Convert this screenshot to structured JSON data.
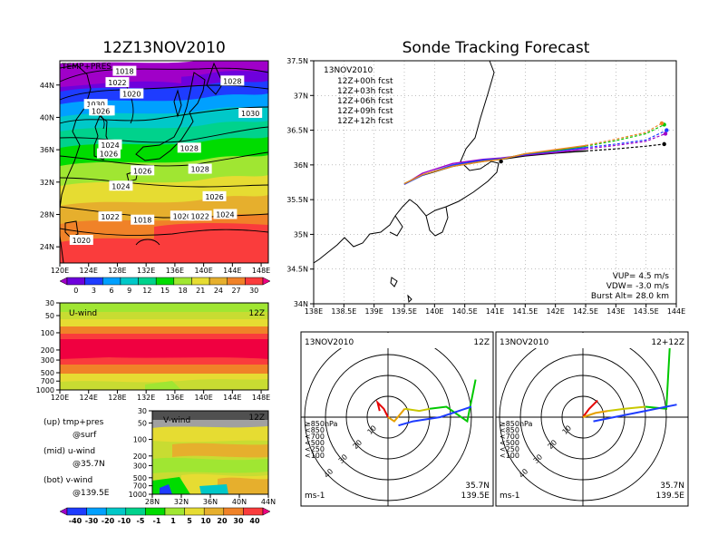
{
  "left_title": "12Z13NOV2010",
  "right_title": "Sonde Tracking Forecast",
  "map_panel": {
    "inset_label": "TEMP+PRES",
    "lon_ticks": [
      "120E",
      "124E",
      "128E",
      "132E",
      "136E",
      "140E",
      "144E",
      "148E"
    ],
    "lat_ticks": [
      "44N",
      "40N",
      "36N",
      "32N",
      "28N",
      "24N"
    ],
    "isobar_labels": [
      {
        "text": "1018",
        "lon": 129,
        "lat": 45.7
      },
      {
        "text": "1022",
        "lon": 128,
        "lat": 44.3
      },
      {
        "text": "1020",
        "lon": 130,
        "lat": 42.9
      },
      {
        "text": "1028",
        "lon": 144,
        "lat": 44.5
      },
      {
        "text": "1030",
        "lon": 125,
        "lat": 41.6
      },
      {
        "text": "1026",
        "lon": 126,
        "lat": 40.8
      },
      {
        "text": "1026",
        "lon": 125.7,
        "lat": 40.8
      },
      {
        "text": "1030",
        "lon": 146.5,
        "lat": 40.5
      },
      {
        "text": "1024",
        "lon": 127,
        "lat": 36.6
      },
      {
        "text": "1026",
        "lon": 126.8,
        "lat": 35.5
      },
      {
        "text": "1028",
        "lon": 138,
        "lat": 36.2
      },
      {
        "text": "1026",
        "lon": 131.5,
        "lat": 33.4
      },
      {
        "text": "1028",
        "lon": 139.5,
        "lat": 33.6
      },
      {
        "text": "1024",
        "lon": 128.5,
        "lat": 31.5
      },
      {
        "text": "1026",
        "lon": 141.5,
        "lat": 30.2
      },
      {
        "text": "1022",
        "lon": 127,
        "lat": 27.7
      },
      {
        "text": "1018",
        "lon": 131.5,
        "lat": 27.3
      },
      {
        "text": "1020",
        "lon": 137,
        "lat": 27.8
      },
      {
        "text": "1022",
        "lon": 139.5,
        "lat": 27.8
      },
      {
        "text": "1024",
        "lon": 143,
        "lat": 28.0
      },
      {
        "text": "1020",
        "lon": 123,
        "lat": 24.8
      }
    ],
    "colorbar_ticks": [
      "0",
      "3",
      "6",
      "9",
      "12",
      "15",
      "18",
      "21",
      "24",
      "27",
      "30"
    ],
    "colorbar_colors": [
      "#a000c8",
      "#6e00dc",
      "#1e3cff",
      "#00a0ff",
      "#00c8c8",
      "#00d28c",
      "#00dc00",
      "#a0e632",
      "#e6dc32",
      "#e6af2d",
      "#f08228",
      "#fa3c3c",
      "#f00082"
    ]
  },
  "uwind_panel": {
    "label": "U-wind",
    "time": "12Z",
    "p_ticks": [
      "30",
      "50",
      "100",
      "200",
      "300",
      "500",
      "700",
      "1000"
    ],
    "lon_ticks": [
      "120E",
      "124E",
      "128E",
      "132E",
      "136E",
      "140E",
      "144E",
      "148E"
    ]
  },
  "vwind_panel": {
    "label": "V-wind",
    "time": "12Z",
    "p_ticks": [
      "30",
      "50",
      "100",
      "200",
      "300",
      "500",
      "700",
      "1000"
    ],
    "lat_ticks": [
      "28N",
      "32N",
      "36N",
      "40N",
      "44N"
    ],
    "colorbar_ticks": [
      "-40",
      "-30",
      "-20",
      "-10",
      "-5",
      "-1",
      "1",
      "5",
      "10",
      "20",
      "30",
      "40"
    ],
    "colorbar_colors": [
      "#a000c8",
      "#1e3cff",
      "#00a0ff",
      "#00c8c8",
      "#00d28c",
      "#00dc00",
      "#a0e632",
      "#e6dc32",
      "#e6af2d",
      "#f08228",
      "#fa3c3c",
      "#f00082"
    ]
  },
  "notes": [
    {
      "line1": "(up) tmp+pres",
      "line2": "@surf"
    },
    {
      "line1": "(mid) u-wind",
      "line2": "@35.7N"
    },
    {
      "line1": "(bot) v-wind",
      "line2": "@139.5E"
    }
  ],
  "track_panel": {
    "date": "13NOV2010",
    "legend": [
      {
        "text": "12Z+00h  fcst",
        "color": "#000000"
      },
      {
        "text": "12Z+03h  fcst",
        "color": "#a000c8"
      },
      {
        "text": "12Z+06h  fcst",
        "color": "#1e3cff"
      },
      {
        "text": "12Z+09h  fcst",
        "color": "#00c800"
      },
      {
        "text": "12Z+12h  fcst",
        "color": "#f08228"
      }
    ],
    "lat_ticks": [
      "37.5N",
      "37N",
      "36.5N",
      "36N",
      "35.5N",
      "35N",
      "34.5N",
      "34N"
    ],
    "lon_ticks": [
      "138E",
      "138.5E",
      "139E",
      "139.5E",
      "140E",
      "140.5E",
      "141E",
      "141.5E",
      "142E",
      "142.5E",
      "143E",
      "143.5E",
      "144E"
    ],
    "info": [
      "VUP=  4.5  m/s",
      "VDW=  -3.0  m/s",
      "Burst Alt=  28.0  km"
    ]
  },
  "hodo_left": {
    "date": "13NOV2010",
    "time": "12Z",
    "ring_labels": [
      "10",
      "20",
      "30",
      "40"
    ],
    "levels": [
      "≥850hPa",
      "<850",
      "<700",
      "<500",
      "<250",
      "<100"
    ],
    "level_colors": [
      "#e60000",
      "#e6a000",
      "#c8c800",
      "#00c800",
      "#00a0ff",
      "#1e3cff"
    ],
    "loc1": "35.7N",
    "loc2": "139.5E",
    "unit": "ms-1"
  },
  "hodo_right": {
    "date": "13NOV2010",
    "time": "12+12Z",
    "ring_labels": [
      "10",
      "20",
      "30",
      "40"
    ],
    "levels": [
      "≥850hPa",
      "<850",
      "<700",
      "<500",
      "<250",
      "<100"
    ],
    "level_colors": [
      "#e60000",
      "#e6a000",
      "#c8c800",
      "#00c800",
      "#00a0ff",
      "#1e3cff"
    ],
    "loc1": "35.7N",
    "loc2": "139.5E",
    "unit": "ms-1"
  },
  "chart_data": [
    {
      "type": "heatmap",
      "title": "12Z13NOV2010",
      "subtitle": "TEMP+PRES",
      "xlabel": "",
      "ylabel": "",
      "xlim": [
        120,
        149
      ],
      "ylim": [
        22,
        47
      ],
      "colorbar": [
        0,
        3,
        6,
        9,
        12,
        15,
        18,
        21,
        24,
        27,
        30
      ]
    },
    {
      "type": "heatmap",
      "title": "U-wind 12Z",
      "xlim": [
        120,
        149
      ],
      "ylim": [
        1000,
        30
      ]
    },
    {
      "type": "heatmap",
      "title": "V-wind 12Z",
      "xlim": [
        28,
        44
      ],
      "ylim": [
        1000,
        30
      ],
      "colorbar": [
        -40,
        -30,
        -20,
        -10,
        -5,
        -1,
        1,
        5,
        10,
        20,
        30,
        40
      ]
    },
    {
      "type": "line",
      "title": "Sonde Tracking Forecast",
      "xlim": [
        138,
        144
      ],
      "ylim": [
        34,
        37.5
      ],
      "series": [
        {
          "name": "12Z+00h  fcst",
          "x": [
            139.5,
            139.8,
            140.3,
            140.8,
            141.1,
            141.5,
            142.0,
            142.5,
            143.0,
            143.5,
            143.8
          ],
          "y": [
            35.73,
            35.85,
            35.98,
            36.06,
            36.08,
            36.13,
            36.17,
            36.2,
            36.23,
            36.27,
            36.3
          ]
        },
        {
          "name": "12Z+03h  fcst",
          "x": [
            139.5,
            139.8,
            140.3,
            140.8,
            141.1,
            141.5,
            142.0,
            142.5,
            143.0,
            143.5,
            143.82
          ],
          "y": [
            35.72,
            35.88,
            36.02,
            36.08,
            36.1,
            36.14,
            36.18,
            36.23,
            36.28,
            36.34,
            36.45
          ]
        },
        {
          "name": "12Z+06h  fcst",
          "x": [
            139.5,
            139.8,
            140.3,
            140.8,
            141.1,
            141.5,
            142.0,
            142.5,
            143.0,
            143.5,
            143.84
          ],
          "y": [
            35.72,
            35.85,
            36.0,
            36.07,
            36.09,
            36.15,
            36.2,
            36.25,
            36.3,
            36.36,
            36.5
          ]
        },
        {
          "name": "12Z+09h  fcst",
          "x": [
            139.5,
            139.8,
            140.3,
            140.8,
            141.1,
            141.5,
            142.0,
            142.5,
            143.0,
            143.5,
            143.8
          ],
          "y": [
            35.73,
            35.86,
            35.98,
            36.05,
            36.08,
            36.16,
            36.21,
            36.27,
            36.35,
            36.45,
            36.58
          ]
        },
        {
          "name": "12Z+12h  fcst",
          "x": [
            139.5,
            139.8,
            140.3,
            140.8,
            141.1,
            141.5,
            142.0,
            142.5,
            143.0,
            143.5,
            143.76
          ],
          "y": [
            35.73,
            35.86,
            35.98,
            36.05,
            36.08,
            36.16,
            36.22,
            36.28,
            36.37,
            36.47,
            36.6
          ]
        }
      ]
    },
    {
      "type": "scatter",
      "title": "hodograph 12Z",
      "units": "ms-1",
      "series": [
        {
          "name": "≥850hPa",
          "u": [
            0,
            -2,
            -5,
            -4
          ],
          "v": [
            0,
            4,
            7,
            3
          ]
        },
        {
          "name": "<850",
          "u": [
            0,
            3,
            8
          ],
          "v": [
            0,
            -2,
            4
          ]
        },
        {
          "name": "<700",
          "u": [
            8,
            15,
            20
          ],
          "v": [
            4,
            3,
            4
          ]
        },
        {
          "name": "<500",
          "u": [
            20,
            28,
            38,
            42
          ],
          "v": [
            4,
            5,
            -2,
            18
          ]
        },
        {
          "name": "<100",
          "u": [
            5,
            12,
            25,
            40
          ],
          "v": [
            -4,
            -2,
            0,
            5
          ]
        }
      ]
    },
    {
      "type": "scatter",
      "title": "hodograph 12+12Z",
      "units": "ms-1",
      "series": [
        {
          "name": "≥850hPa",
          "u": [
            0,
            3,
            7,
            5
          ],
          "v": [
            0,
            4,
            8,
            6
          ]
        },
        {
          "name": "<850",
          "u": [
            0,
            6,
            12
          ],
          "v": [
            0,
            2,
            3
          ]
        },
        {
          "name": "<700",
          "u": [
            12,
            20,
            30
          ],
          "v": [
            3,
            4,
            5
          ]
        },
        {
          "name": "<500",
          "u": [
            30,
            40,
            42,
            48
          ],
          "v": [
            5,
            4,
            40,
            38
          ]
        },
        {
          "name": "<100",
          "u": [
            5,
            15,
            30,
            45
          ],
          "v": [
            -2,
            0,
            3,
            6
          ]
        }
      ]
    }
  ]
}
